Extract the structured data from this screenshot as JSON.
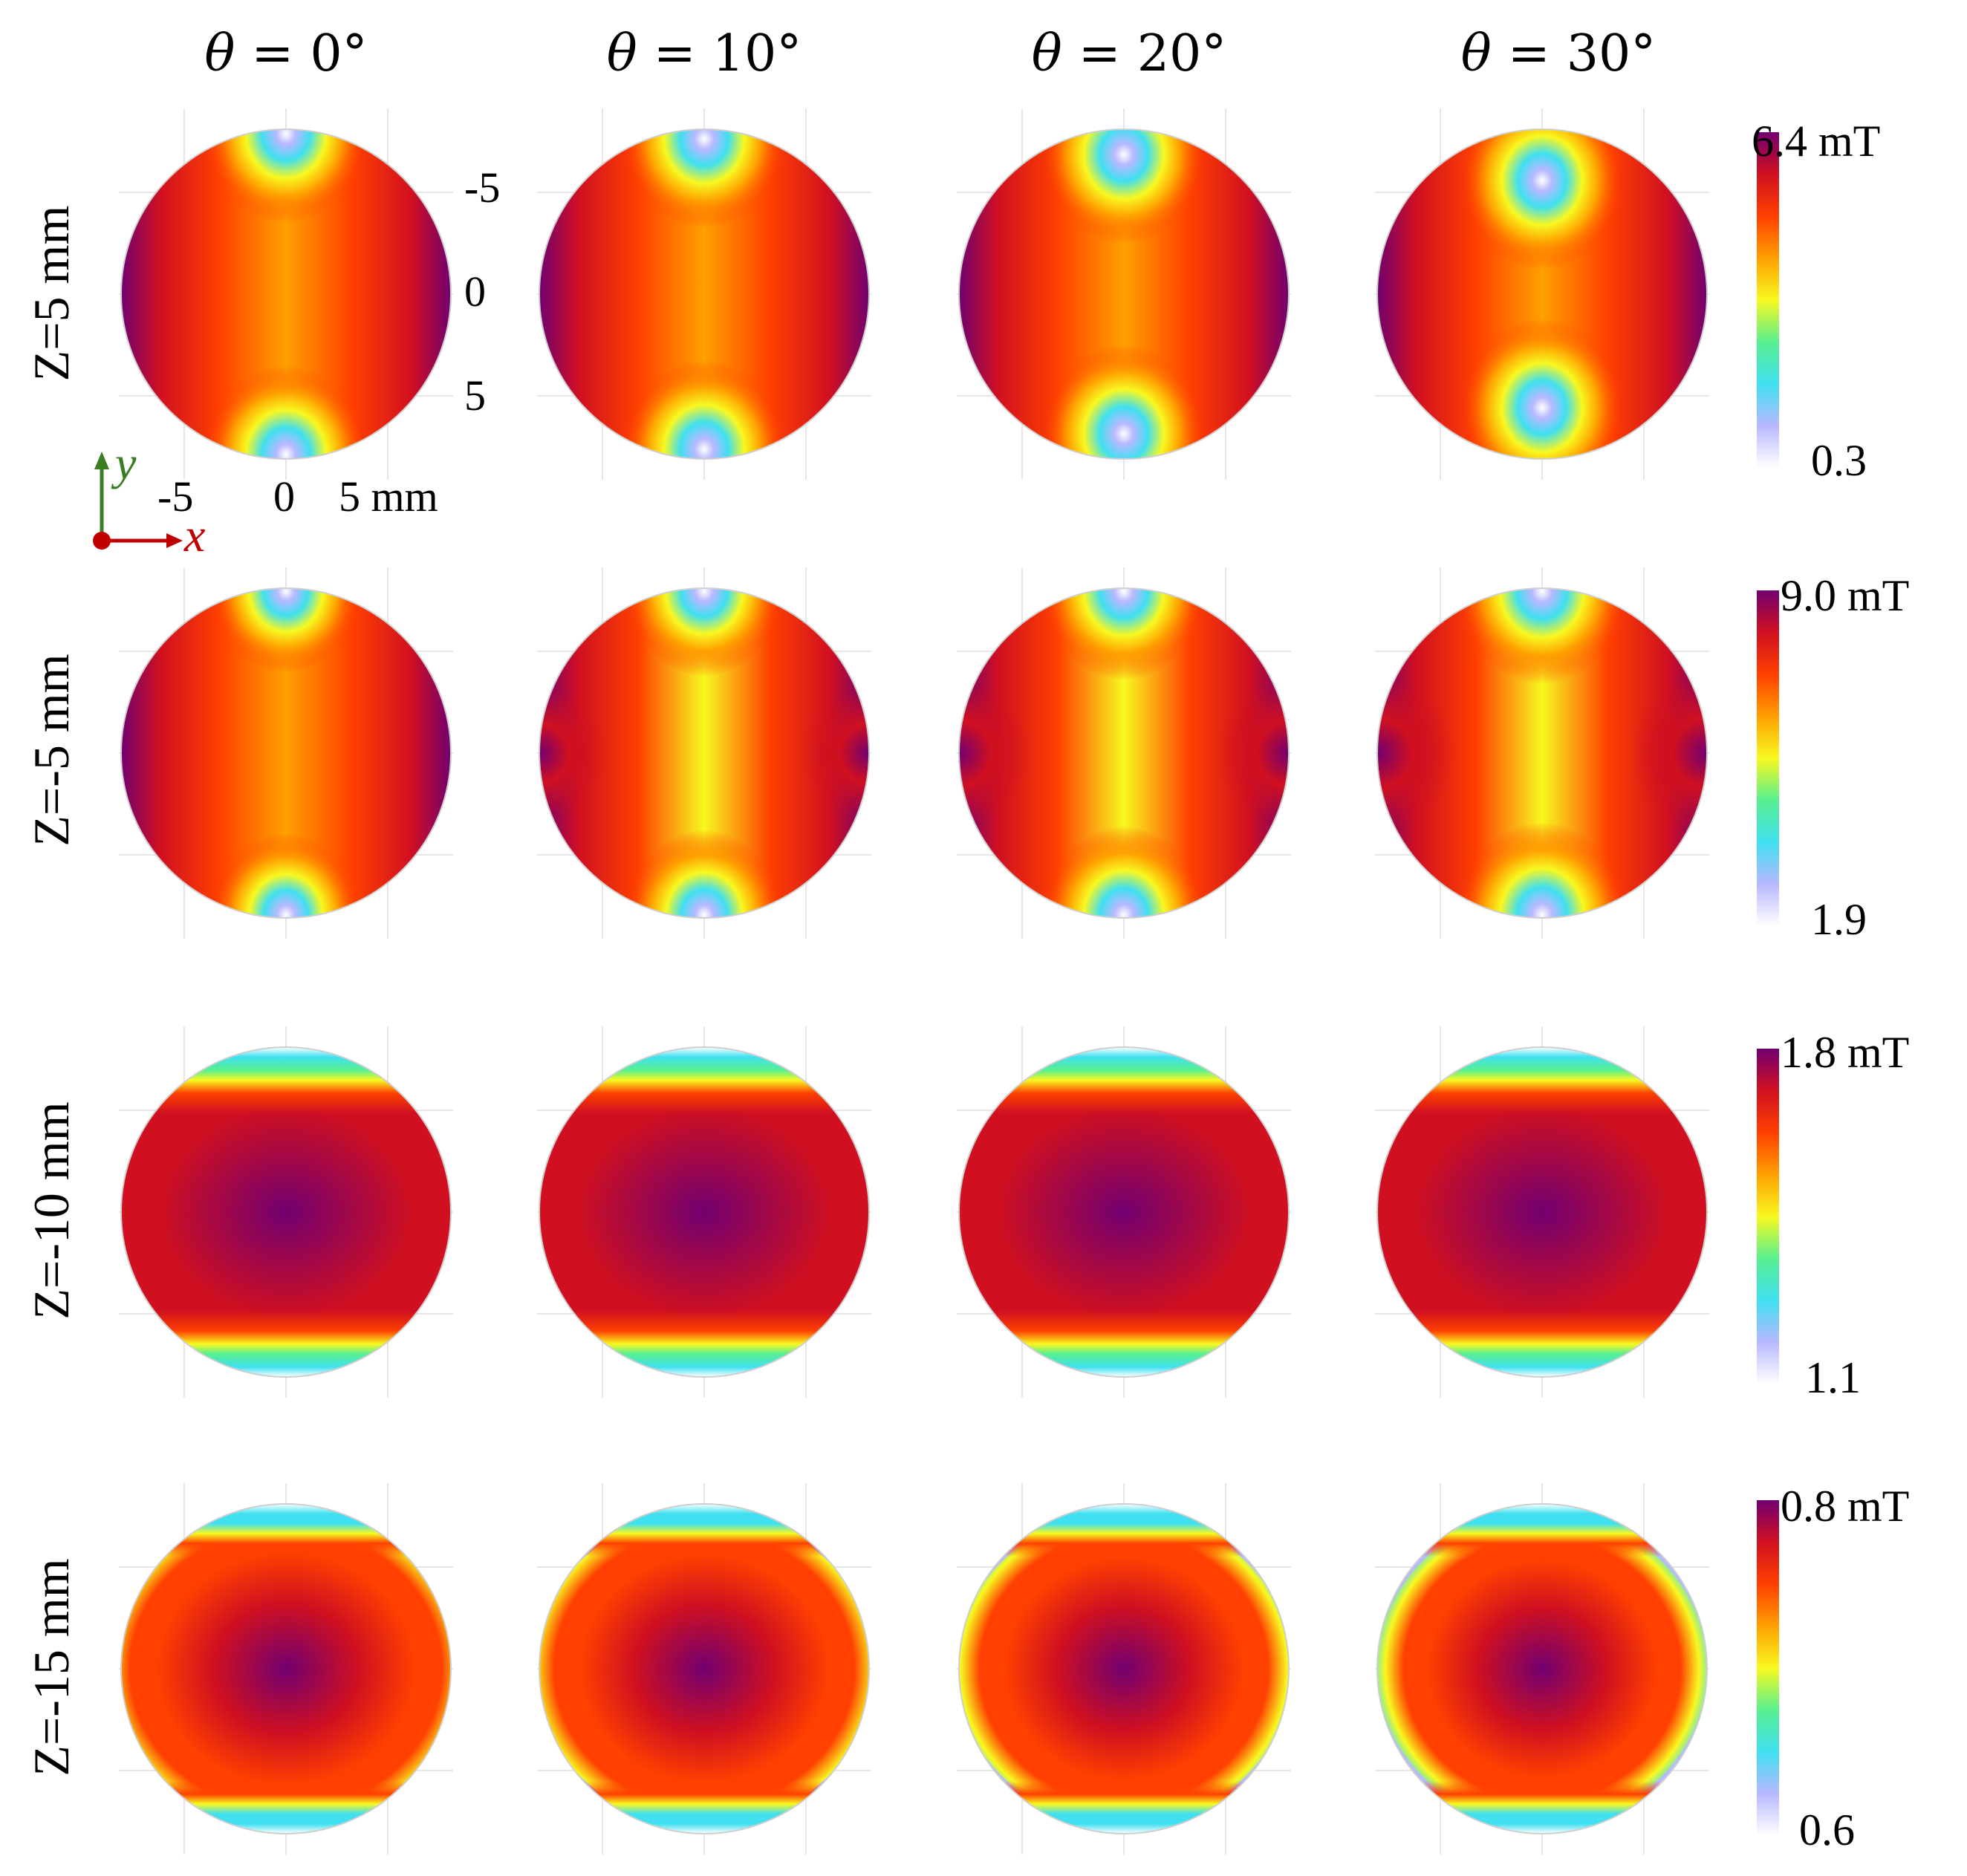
{
  "chart_data": {
    "type": "heatmap",
    "title": "",
    "column_headers": [
      {
        "sym": "θ",
        "op": "=",
        "val": "0°"
      },
      {
        "sym": "θ",
        "op": "=",
        "val": "10°"
      },
      {
        "sym": "θ",
        "op": "=",
        "val": "20°"
      },
      {
        "sym": "θ",
        "op": "=",
        "val": "30°"
      }
    ],
    "theta_deg": [
      0,
      10,
      20,
      30
    ],
    "row_labels": [
      "Z=5 mm",
      "Z=-5 mm",
      "Z=-10 mm",
      "Z=-15 mm"
    ],
    "z_mm": [
      5,
      -5,
      -10,
      -15
    ],
    "colorbars": [
      {
        "max_label": "6.4 mT",
        "min_label": "0.3",
        "max": 6.4,
        "min": 0.3,
        "unit": "mT"
      },
      {
        "max_label": "9.0 mT",
        "min_label": "1.9",
        "max": 9.0,
        "min": 1.9,
        "unit": "mT"
      },
      {
        "max_label": "1.8 mT",
        "min_label": "1.1",
        "max": 1.8,
        "min": 1.1,
        "unit": "mT"
      },
      {
        "max_label": "0.8 mT",
        "min_label": "0.6",
        "max": 0.8,
        "min": 0.6,
        "unit": "mT"
      }
    ],
    "axes": {
      "x_ticks": [
        "-5",
        "0",
        "5 mm"
      ],
      "y_ticks": [
        "-5",
        "0",
        "5"
      ],
      "x_axis_letter": "x",
      "y_axis_letter": "y",
      "range_mm": [
        -8,
        8
      ]
    },
    "colors": {
      "x_axis": "#c00000",
      "y_axis": "#3a7d22",
      "colormap": [
        "#ffffff",
        "#b8b8ff",
        "#40e0f0",
        "#58f090",
        "#f8f820",
        "#ffa000",
        "#ff4000",
        "#d01020",
        "#720070"
      ]
    }
  }
}
